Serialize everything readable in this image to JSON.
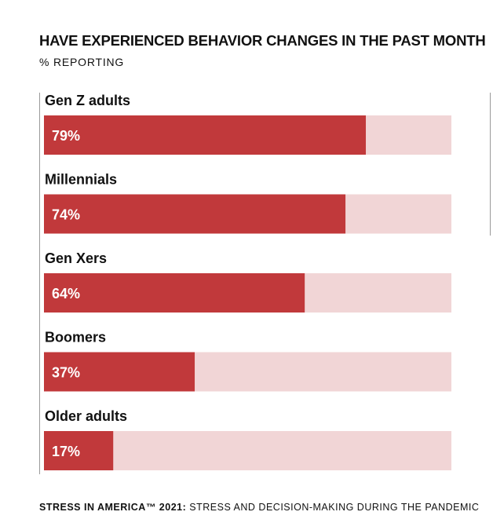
{
  "chart_data": {
    "type": "bar",
    "orientation": "horizontal",
    "title": "HAVE EXPERIENCED BEHAVIOR CHANGES IN THE PAST MONTH",
    "subtitle": "% REPORTING",
    "categories": [
      "Gen Z adults",
      "Millennials",
      "Gen Xers",
      "Boomers",
      "Older adults"
    ],
    "values": [
      79,
      74,
      64,
      37,
      17
    ],
    "value_labels": [
      "79%",
      "74%",
      "64%",
      "37%",
      "17%"
    ],
    "xlim": [
      0,
      100
    ],
    "grid": false,
    "legend": "none",
    "colors": {
      "bar": "#c1393b",
      "track": "#f1d5d6",
      "value_text": "#ffffff",
      "label_text": "#111111"
    }
  },
  "footer": {
    "source_bold": "STRESS IN AMERICA™ 2021:",
    "source_rest": "STRESS AND DECISION-MAKING DURING THE PANDEMIC"
  }
}
